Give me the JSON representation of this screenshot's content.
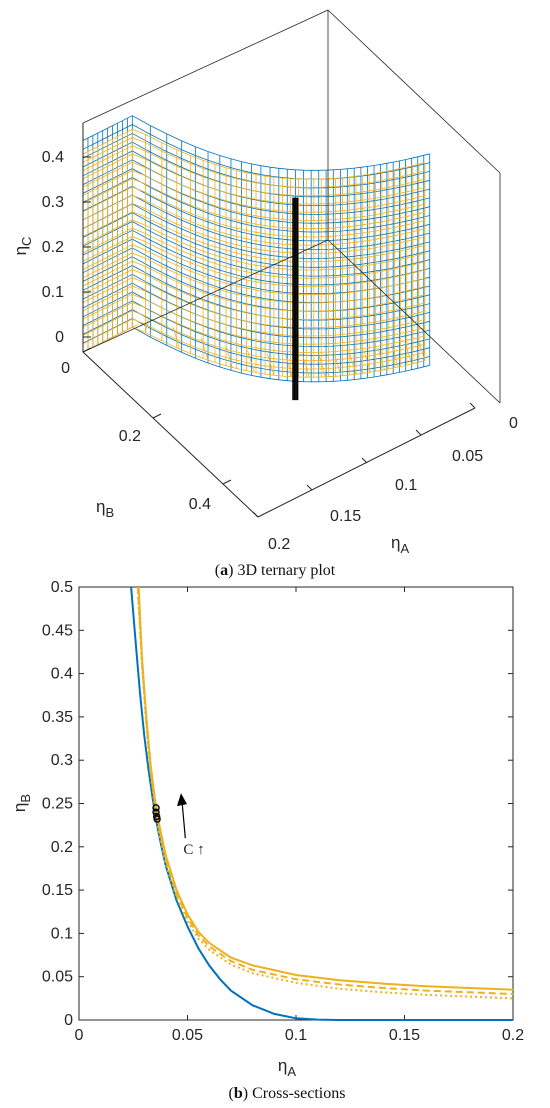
{
  "figure": {
    "caption_a_letter": "a",
    "caption_a_text": "3D ternary plot",
    "caption_b_letter": "b",
    "caption_b_text": "Cross-sections"
  },
  "colors": {
    "blue": "#0072BD",
    "orange": "#EDB120",
    "marker": "#000000",
    "axis": "#262626"
  },
  "chart_data": [
    {
      "id": "a",
      "type": "surface3d",
      "xlabel": "η_A",
      "ylabel": "η_B",
      "zlabel": "η_C",
      "xlim": [
        0,
        0.2
      ],
      "ylim": [
        0,
        0.5
      ],
      "zlim": [
        0,
        0.45
      ],
      "xticks": [
        "0",
        "0.05",
        "0.1",
        "0.15",
        "0.2"
      ],
      "yticks": [
        "0",
        "0.2",
        "0.4"
      ],
      "zticks": [
        "0",
        "0.1",
        "0.2",
        "0.3",
        "0.4"
      ],
      "surfaces": [
        {
          "color": "blue",
          "style": "mesh"
        },
        {
          "color": "orange",
          "style": "mesh"
        }
      ],
      "marked_curve": {
        "color": "marker",
        "eta_A": 0.035,
        "eta_B": 0.24,
        "eta_C_range": [
          0,
          0.45
        ]
      }
    },
    {
      "id": "b",
      "type": "line",
      "xlabel": "η_A",
      "ylabel": "η_B",
      "xlim": [
        0,
        0.2
      ],
      "ylim": [
        0,
        0.5
      ],
      "xticks": [
        "0",
        "0.05",
        "0.1",
        "0.15",
        "0.2"
      ],
      "yticks": [
        "0",
        "0.05",
        "0.1",
        "0.15",
        "0.2",
        "0.25",
        "0.3",
        "0.35",
        "0.4",
        "0.45",
        "0.5"
      ],
      "grid": false,
      "series": [
        {
          "color": "blue",
          "dash": "solid",
          "x": [
            0.024,
            0.026,
            0.028,
            0.03,
            0.032,
            0.034,
            0.036,
            0.038,
            0.04,
            0.045,
            0.05,
            0.055,
            0.06,
            0.065,
            0.07,
            0.08,
            0.09,
            0.1,
            0.11,
            0.12,
            0.14,
            0.16,
            0.18,
            0.2
          ],
          "y": [
            0.5,
            0.44,
            0.38,
            0.33,
            0.29,
            0.255,
            0.225,
            0.2,
            0.178,
            0.138,
            0.108,
            0.083,
            0.063,
            0.047,
            0.034,
            0.017,
            0.007,
            0.002,
            0.0005,
            0,
            0,
            0,
            0,
            0
          ]
        },
        {
          "color": "orange",
          "dash": "solid",
          "x": [
            0.0275,
            0.029,
            0.031,
            0.033,
            0.035,
            0.037,
            0.04,
            0.045,
            0.05,
            0.055,
            0.06,
            0.07,
            0.08,
            0.1,
            0.12,
            0.14,
            0.16,
            0.18,
            0.2
          ],
          "y": [
            0.5,
            0.42,
            0.35,
            0.295,
            0.255,
            0.225,
            0.19,
            0.15,
            0.122,
            0.102,
            0.089,
            0.072,
            0.063,
            0.052,
            0.046,
            0.042,
            0.039,
            0.037,
            0.035
          ]
        },
        {
          "color": "orange",
          "dash": "dashed",
          "x": [
            0.0272,
            0.029,
            0.031,
            0.033,
            0.035,
            0.037,
            0.04,
            0.045,
            0.05,
            0.055,
            0.06,
            0.07,
            0.08,
            0.1,
            0.12,
            0.14,
            0.16,
            0.18,
            0.2
          ],
          "y": [
            0.5,
            0.415,
            0.345,
            0.29,
            0.25,
            0.22,
            0.185,
            0.146,
            0.118,
            0.098,
            0.085,
            0.068,
            0.058,
            0.047,
            0.041,
            0.037,
            0.034,
            0.032,
            0.03
          ]
        },
        {
          "color": "orange",
          "dash": "dotted",
          "x": [
            0.027,
            0.029,
            0.031,
            0.033,
            0.035,
            0.037,
            0.04,
            0.045,
            0.05,
            0.055,
            0.06,
            0.07,
            0.08,
            0.1,
            0.12,
            0.14,
            0.16,
            0.18,
            0.2
          ],
          "y": [
            0.5,
            0.41,
            0.34,
            0.285,
            0.245,
            0.215,
            0.18,
            0.142,
            0.114,
            0.094,
            0.081,
            0.064,
            0.054,
            0.043,
            0.036,
            0.032,
            0.029,
            0.027,
            0.025
          ]
        }
      ],
      "markers": {
        "x": [
          0.0355,
          0.0355,
          0.0358,
          0.036
        ],
        "y": [
          0.245,
          0.24,
          0.235,
          0.232
        ]
      },
      "annotation": {
        "text": "C ↑",
        "arrow_from": [
          0.049,
          0.21
        ],
        "arrow_to": [
          0.047,
          0.262
        ]
      }
    }
  ]
}
